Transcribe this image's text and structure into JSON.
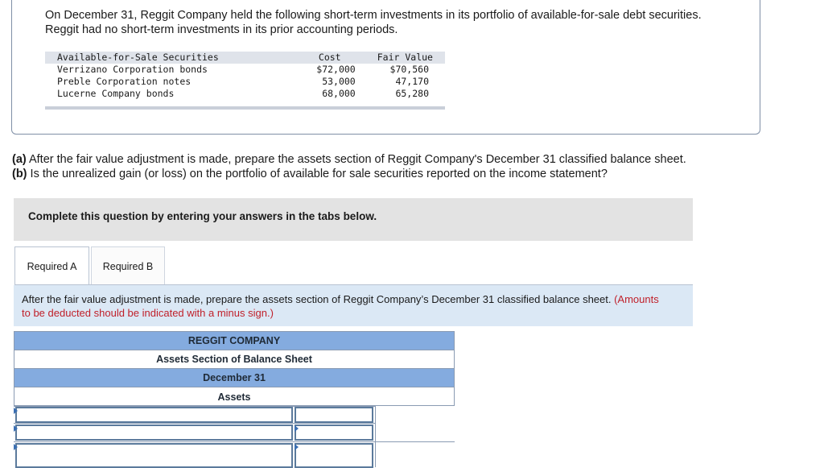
{
  "intro_text": "On December 31, Reggit Company held the following short-term investments in its portfolio of available-for-sale debt securities. Reggit had no short-term investments in its prior accounting periods.",
  "securities_table": {
    "headers": [
      "Available-for-Sale Securities",
      "Cost",
      "Fair Value"
    ],
    "rows": [
      [
        "Verrizano Corporation bonds",
        "$72,000",
        "$70,560"
      ],
      [
        "Preble Corporation notes",
        "53,000",
        "47,170"
      ],
      [
        "Lucerne Company bonds",
        "68,000",
        "65,280"
      ]
    ]
  },
  "question_a_label": "(a)",
  "question_a_text": " After the fair value adjustment is made, prepare the assets section of Reggit Company's December 31 classified balance sheet.",
  "question_b_label": "(b)",
  "question_b_text": " Is the unrealized gain (or loss) on the portfolio of available for sale securities reported on the income statement?",
  "instruction_bar": "Complete this question by entering your answers in the tabs below.",
  "tabs": [
    "Required A",
    "Required B"
  ],
  "task_text": "After the fair value adjustment is made, prepare the assets section of Reggit Company’s December 31 classified balance sheet. ",
  "task_note": "(Amounts to be deducted should be indicated with a minus sign.)",
  "balance_sheet": {
    "company": "REGGIT COMPANY",
    "title": "Assets Section of Balance Sheet",
    "date": "December 31",
    "section": "Assets"
  },
  "colors": {
    "header_blue": "#84abdf",
    "instruction_blue": "#dbe8f5",
    "note_red": "#c0202a"
  }
}
